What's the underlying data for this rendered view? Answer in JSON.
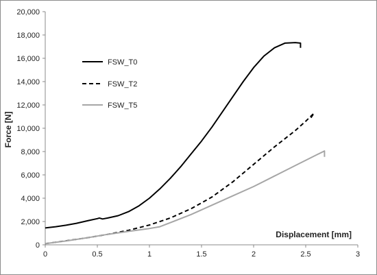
{
  "chart_data": {
    "type": "line",
    "xlabel": "Displacement [mm]",
    "ylabel": "Force [N]",
    "xlim": [
      0,
      3
    ],
    "ylim": [
      0,
      20000
    ],
    "x_ticks": [
      "0",
      "0.5",
      "1",
      "1.5",
      "2",
      "2.5",
      "3"
    ],
    "y_ticks": [
      "0",
      "2,000",
      "4,000",
      "6,000",
      "8,000",
      "10,000",
      "12,000",
      "14,000",
      "16,000",
      "18,000",
      "20,000"
    ],
    "grid": false,
    "legend_position": "left",
    "series": [
      {
        "name": "FSW_T0",
        "style": "solid",
        "color": "#000000",
        "points": [
          [
            0,
            1450
          ],
          [
            0.1,
            1550
          ],
          [
            0.2,
            1680
          ],
          [
            0.3,
            1850
          ],
          [
            0.4,
            2050
          ],
          [
            0.5,
            2250
          ],
          [
            0.52,
            2300
          ],
          [
            0.55,
            2220
          ],
          [
            0.6,
            2300
          ],
          [
            0.7,
            2500
          ],
          [
            0.8,
            2850
          ],
          [
            0.9,
            3350
          ],
          [
            1.0,
            4000
          ],
          [
            1.1,
            4800
          ],
          [
            1.2,
            5700
          ],
          [
            1.3,
            6700
          ],
          [
            1.4,
            7800
          ],
          [
            1.5,
            8900
          ],
          [
            1.6,
            10100
          ],
          [
            1.7,
            11400
          ],
          [
            1.8,
            12700
          ],
          [
            1.9,
            14000
          ],
          [
            2.0,
            15200
          ],
          [
            2.1,
            16200
          ],
          [
            2.2,
            16900
          ],
          [
            2.3,
            17300
          ],
          [
            2.4,
            17350
          ],
          [
            2.45,
            17300
          ],
          [
            2.45,
            16900
          ]
        ]
      },
      {
        "name": "FSW_T2",
        "style": "dashed",
        "color": "#000000",
        "points": [
          [
            0,
            100
          ],
          [
            0.2,
            350
          ],
          [
            0.4,
            600
          ],
          [
            0.6,
            900
          ],
          [
            0.8,
            1250
          ],
          [
            1.0,
            1700
          ],
          [
            1.2,
            2300
          ],
          [
            1.4,
            3100
          ],
          [
            1.6,
            4100
          ],
          [
            1.8,
            5400
          ],
          [
            2.0,
            6900
          ],
          [
            2.2,
            8400
          ],
          [
            2.4,
            9800
          ],
          [
            2.5,
            10600
          ],
          [
            2.58,
            11300
          ],
          [
            2.55,
            10900
          ]
        ]
      },
      {
        "name": "FSW_T5",
        "style": "solid",
        "color": "#a6a6a6",
        "points": [
          [
            0,
            100
          ],
          [
            0.2,
            330
          ],
          [
            0.4,
            600
          ],
          [
            0.6,
            900
          ],
          [
            0.8,
            1150
          ],
          [
            1.0,
            1400
          ],
          [
            1.1,
            1550
          ],
          [
            1.2,
            1900
          ],
          [
            1.4,
            2600
          ],
          [
            1.6,
            3400
          ],
          [
            1.8,
            4200
          ],
          [
            2.0,
            5000
          ],
          [
            2.2,
            5900
          ],
          [
            2.4,
            6800
          ],
          [
            2.6,
            7700
          ],
          [
            2.68,
            8050
          ],
          [
            2.68,
            7550
          ]
        ]
      }
    ]
  }
}
